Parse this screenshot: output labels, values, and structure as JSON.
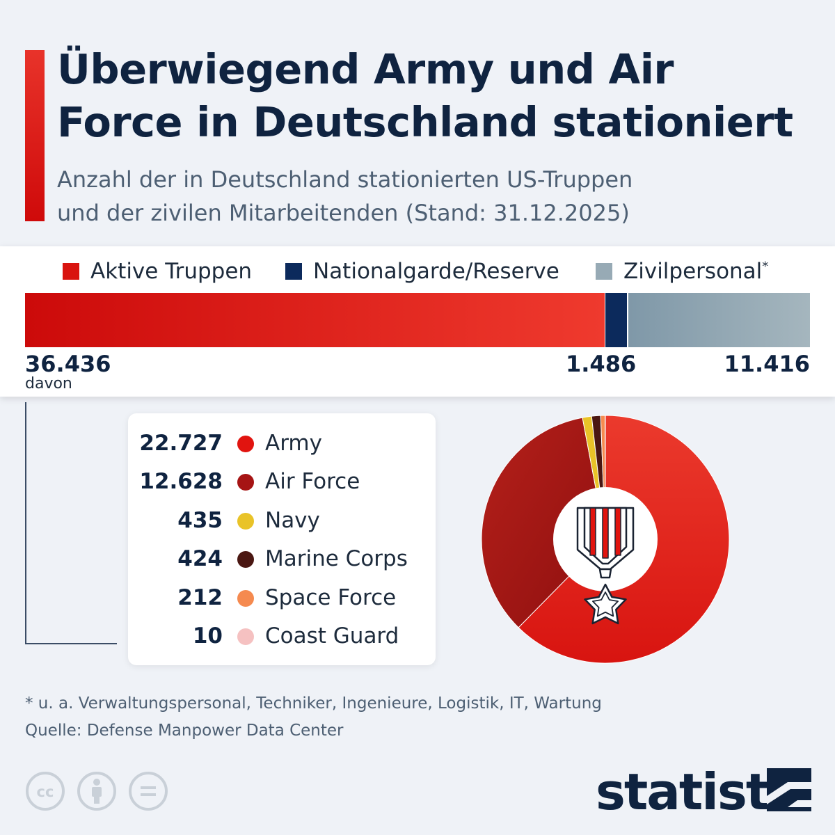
{
  "title": "Überwiegend Army und Air\nForce in Deutschland stationiert",
  "subtitle": "Anzahl der in Deutschland stationierten US-Truppen\nund der zivilen Mitarbeitenden (Stand: 31.12.2025)",
  "legend": [
    {
      "label": "Aktive Truppen",
      "color": "#d9140f"
    },
    {
      "label": "Nationalgarde/Reserve",
      "color": "#0c2a5c"
    },
    {
      "label": "Zivilpersonal",
      "sup": "*",
      "color": "#97aab5"
    }
  ],
  "bar_labels": {
    "active": "36.436",
    "guard": "1.486",
    "civil": "11.416",
    "davon": "davon"
  },
  "branches": [
    {
      "value_label": "22.727",
      "name": "Army",
      "color": "#e1140f"
    },
    {
      "value_label": "12.628",
      "name": "Air Force",
      "color": "#a61414"
    },
    {
      "value_label": "435",
      "name": "Navy",
      "color": "#e9c328"
    },
    {
      "value_label": "424",
      "name": "Marine Corps",
      "color": "#4a1712"
    },
    {
      "value_label": "212",
      "name": "Space Force",
      "color": "#f58a4f"
    },
    {
      "value_label": "10",
      "name": "Coast Guard",
      "color": "#f5c1c1"
    }
  ],
  "footnote": "* u. a. Verwaltungspersonal, Techniker, Ingenieure, Logistik, IT, Wartung",
  "source": "Quelle: Defense Manpower Data Center",
  "icons": [
    "creative-commons-icon",
    "attribution-icon",
    "no-derivatives-icon",
    "statista-logo-icon"
  ],
  "brand": "statista",
  "chart_data": [
    {
      "type": "bar",
      "orientation": "horizontal-stacked",
      "categories": [
        "Aktive Truppen",
        "Nationalgarde/Reserve",
        "Zivilpersonal"
      ],
      "values": [
        36436,
        1486,
        11416
      ],
      "value_labels": [
        "36.436",
        "1.486",
        "11.416"
      ]
    },
    {
      "type": "pie",
      "style": "donut",
      "categories": [
        "Army",
        "Air Force",
        "Navy",
        "Marine Corps",
        "Space Force",
        "Coast Guard"
      ],
      "values": [
        22727,
        12628,
        435,
        424,
        212,
        10
      ],
      "colors": [
        "#e1140f",
        "#a61414",
        "#e9c328",
        "#4a1712",
        "#f58a4f",
        "#f5c1c1"
      ]
    }
  ]
}
